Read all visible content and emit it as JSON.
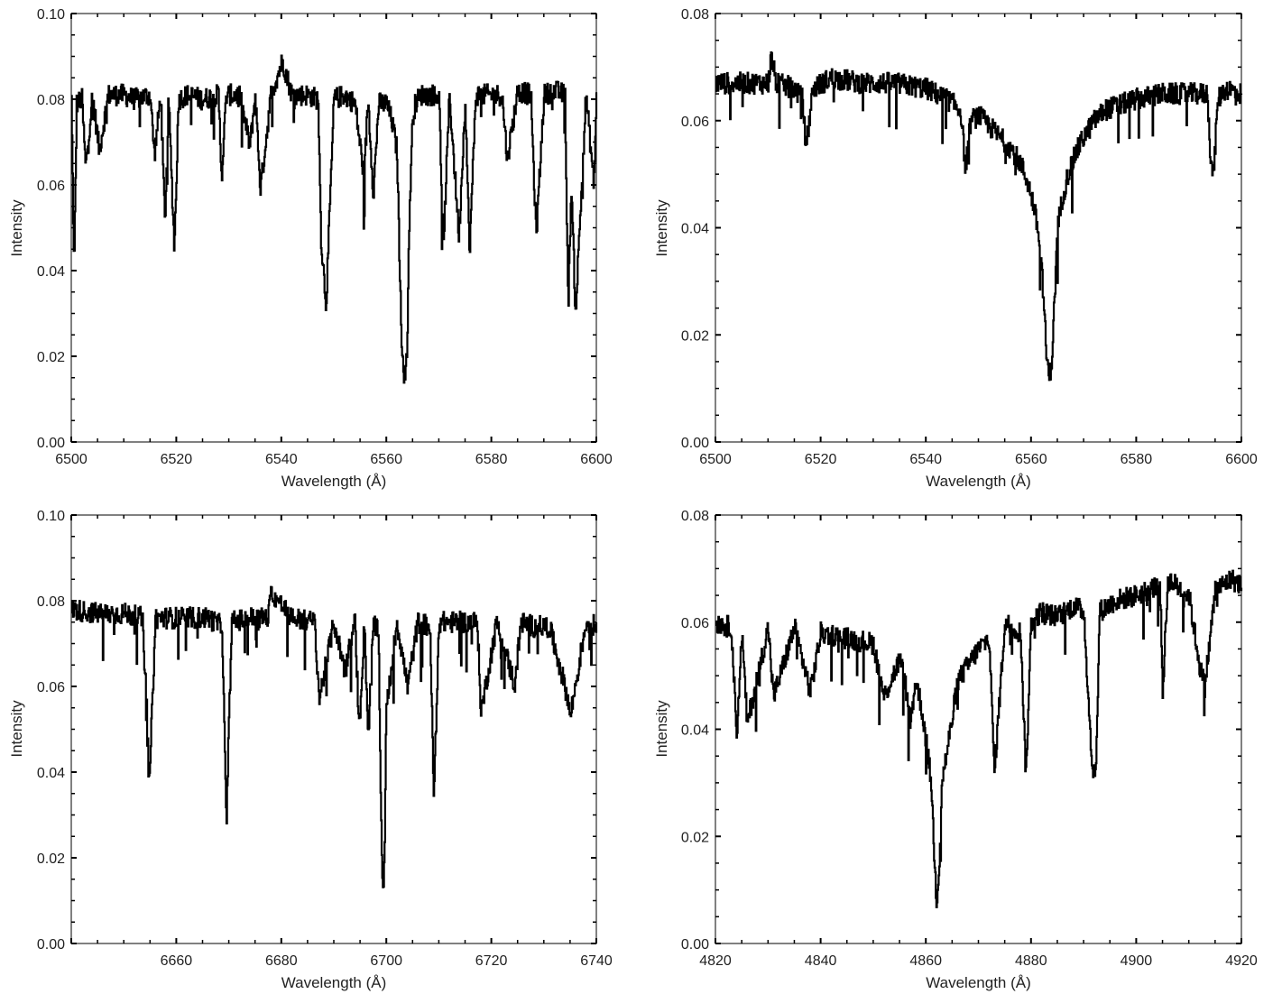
{
  "figure": {
    "line_color": "#000000",
    "axis_color": "#000000",
    "background": "#ffffff"
  },
  "chart_data": [
    {
      "type": "line",
      "xlabel": "Wavelength (Å)",
      "ylabel": "Intensity",
      "xlim": [
        6500,
        6600
      ],
      "ylim": [
        0.0,
        0.1
      ],
      "xticks": [
        6500,
        6520,
        6540,
        6560,
        6580,
        6600
      ],
      "xtick_labels": [
        "6500",
        "6520",
        "6540",
        "6560",
        "6580",
        "6600"
      ],
      "yticks": [
        0.0,
        0.02,
        0.04,
        0.06,
        0.08,
        0.1
      ],
      "ytick_labels": [
        "0.00",
        "0.02",
        "0.04",
        "0.06",
        "0.08",
        "0.10"
      ],
      "grid": false,
      "series": [
        {
          "x": [
            6500,
            6500.5,
            6501,
            6502,
            6502.7,
            6504,
            6505.3,
            6507,
            6510,
            6512,
            6515,
            6515.8,
            6517,
            6517.8,
            6518.5,
            6519.6,
            6520.4,
            6522,
            6525,
            6528,
            6528.6,
            6529.5,
            6532,
            6534,
            6535,
            6536,
            6538,
            6540.2,
            6542,
            6545,
            6547,
            6547.5,
            6548.5,
            6550,
            6552,
            6554,
            6555.7,
            6556.5,
            6557.5,
            6558.5,
            6560,
            6561,
            6562,
            6562.8,
            6563.4,
            6563.9,
            6564.4,
            6565,
            6565.5,
            6566.5,
            6568,
            6570,
            6570.8,
            6572,
            6573.8,
            6575,
            6575.8,
            6577,
            6580,
            6582,
            6583,
            6585,
            6587.5,
            6588.5,
            6590,
            6592,
            6594,
            6594.6,
            6595.2,
            6596,
            6598,
            6599.5,
            6600
          ],
          "y": [
            0.08,
            0.039,
            0.079,
            0.08,
            0.064,
            0.081,
            0.068,
            0.081,
            0.081,
            0.08,
            0.081,
            0.067,
            0.081,
            0.051,
            0.08,
            0.045,
            0.08,
            0.081,
            0.08,
            0.081,
            0.062,
            0.081,
            0.081,
            0.069,
            0.081,
            0.059,
            0.081,
            0.089,
            0.081,
            0.081,
            0.08,
            0.048,
            0.032,
            0.08,
            0.081,
            0.079,
            0.062,
            0.08,
            0.058,
            0.079,
            0.079,
            0.075,
            0.068,
            0.026,
            0.015,
            0.021,
            0.055,
            0.076,
            0.079,
            0.081,
            0.081,
            0.081,
            0.045,
            0.081,
            0.048,
            0.08,
            0.044,
            0.081,
            0.081,
            0.081,
            0.066,
            0.082,
            0.081,
            0.048,
            0.081,
            0.082,
            0.081,
            0.031,
            0.06,
            0.03,
            0.081,
            0.06,
            0.08
          ]
        }
      ]
    },
    {
      "type": "line",
      "xlabel": "Wavelength (Å)",
      "ylabel": "Intensity",
      "xlim": [
        6500,
        6600
      ],
      "ylim": [
        0.0,
        0.08
      ],
      "xticks": [
        6500,
        6520,
        6540,
        6560,
        6580,
        6600
      ],
      "xtick_labels": [
        "6500",
        "6520",
        "6540",
        "6560",
        "6580",
        "6600"
      ],
      "yticks": [
        0.0,
        0.02,
        0.04,
        0.06,
        0.08
      ],
      "ytick_labels": [
        "0.00",
        "0.02",
        "0.04",
        "0.06",
        "0.08"
      ],
      "grid": false,
      "series": [
        {
          "x": [
            6500,
            6505,
            6510,
            6510.6,
            6511.5,
            6515,
            6516.5,
            6517.2,
            6518.5,
            6522,
            6528,
            6534,
            6540,
            6544,
            6546.6,
            6547.5,
            6548.5,
            6550,
            6552,
            6554,
            6556,
            6558,
            6559.5,
            6560.5,
            6561.5,
            6562.3,
            6562.9,
            6563.4,
            6563.9,
            6564.5,
            6565,
            6566,
            6567,
            6568.5,
            6570,
            6572,
            6574,
            6577,
            6580,
            6585,
            6590,
            6593.5,
            6594,
            6594.6,
            6595.5,
            6597,
            6600
          ],
          "y": [
            0.067,
            0.067,
            0.067,
            0.072,
            0.067,
            0.066,
            0.064,
            0.055,
            0.066,
            0.068,
            0.067,
            0.067,
            0.066,
            0.064,
            0.062,
            0.051,
            0.06,
            0.061,
            0.059,
            0.057,
            0.055,
            0.052,
            0.048,
            0.044,
            0.038,
            0.028,
            0.016,
            0.012,
            0.015,
            0.028,
            0.04,
            0.046,
            0.05,
            0.054,
            0.057,
            0.06,
            0.062,
            0.063,
            0.064,
            0.065,
            0.065,
            0.065,
            0.055,
            0.049,
            0.064,
            0.066,
            0.065
          ]
        }
      ]
    },
    {
      "type": "line",
      "xlabel": "Wavelength (Å)",
      "ylabel": "Intensity",
      "xlim": [
        6640,
        6740
      ],
      "ylim": [
        0.0,
        0.1
      ],
      "xticks": [
        6660,
        6680,
        6700,
        6720,
        6740
      ],
      "xtick_labels": [
        "6660",
        "6680",
        "6700",
        "6720",
        "6740"
      ],
      "yticks": [
        0.0,
        0.02,
        0.04,
        0.06,
        0.08,
        0.1
      ],
      "ytick_labels": [
        "0.00",
        "0.02",
        "0.04",
        "0.06",
        "0.08",
        "0.10"
      ],
      "grid": false,
      "series": [
        {
          "x": [
            6640,
            6645,
            6650,
            6653.5,
            6654.3,
            6654.8,
            6656,
            6660,
            6666,
            6668.7,
            6669.5,
            6670.5,
            6674,
            6677.5,
            6678,
            6682,
            6686.3,
            6687.2,
            6690,
            6692,
            6694,
            6694.8,
            6695.8,
            6696.5,
            6697.5,
            6698.5,
            6699,
            6699.4,
            6700,
            6702,
            6704,
            6706,
            6708.3,
            6709,
            6710,
            6714,
            6717.3,
            6718,
            6721,
            6724.5,
            6725.5,
            6728,
            6731,
            6734.4,
            6735,
            6738,
            6740
          ],
          "y": [
            0.078,
            0.077,
            0.077,
            0.076,
            0.056,
            0.036,
            0.076,
            0.076,
            0.076,
            0.074,
            0.027,
            0.075,
            0.076,
            0.076,
            0.082,
            0.076,
            0.075,
            0.057,
            0.075,
            0.064,
            0.075,
            0.05,
            0.075,
            0.048,
            0.075,
            0.072,
            0.027,
            0.009,
            0.055,
            0.075,
            0.06,
            0.075,
            0.074,
            0.034,
            0.075,
            0.075,
            0.075,
            0.054,
            0.075,
            0.06,
            0.075,
            0.074,
            0.074,
            0.058,
            0.053,
            0.075,
            0.074
          ]
        }
      ]
    },
    {
      "type": "line",
      "xlabel": "Wavelength (Å)",
      "ylabel": "Intensity",
      "xlim": [
        4820,
        4920
      ],
      "ylim": [
        0.0,
        0.08
      ],
      "xticks": [
        4820,
        4840,
        4860,
        4880,
        4900,
        4920
      ],
      "xtick_labels": [
        "4820",
        "4840",
        "4860",
        "4880",
        "4900",
        "4920"
      ],
      "yticks": [
        0.0,
        0.02,
        0.04,
        0.06,
        0.08
      ],
      "ytick_labels": [
        "0.00",
        "0.02",
        "0.04",
        "0.06",
        "0.08"
      ],
      "grid": false,
      "series": [
        {
          "x": [
            4820,
            4823,
            4824,
            4825,
            4826,
            4830,
            4831,
            4835,
            4838,
            4840,
            4845,
            4850,
            4852,
            4855,
            4856,
            4857,
            4858,
            4859,
            4860,
            4861,
            4861.5,
            4862,
            4862.5,
            4863,
            4864,
            4865,
            4866,
            4868,
            4870,
            4872,
            4873,
            4875,
            4878,
            4879,
            4880,
            4882,
            4885,
            4888,
            4890,
            4891.5,
            4892.3,
            4893,
            4896,
            4900,
            4904.5,
            4905,
            4906,
            4910,
            4912,
            4913,
            4915,
            4918,
            4920
          ],
          "y": [
            0.06,
            0.059,
            0.039,
            0.058,
            0.041,
            0.059,
            0.046,
            0.059,
            0.047,
            0.058,
            0.057,
            0.056,
            0.046,
            0.053,
            0.049,
            0.041,
            0.049,
            0.045,
            0.038,
            0.03,
            0.018,
            0.008,
            0.014,
            0.03,
            0.036,
            0.042,
            0.049,
            0.052,
            0.055,
            0.057,
            0.032,
            0.06,
            0.058,
            0.031,
            0.06,
            0.062,
            0.061,
            0.063,
            0.062,
            0.034,
            0.031,
            0.062,
            0.064,
            0.065,
            0.067,
            0.047,
            0.068,
            0.065,
            0.052,
            0.048,
            0.066,
            0.068,
            0.067
          ]
        }
      ]
    }
  ]
}
